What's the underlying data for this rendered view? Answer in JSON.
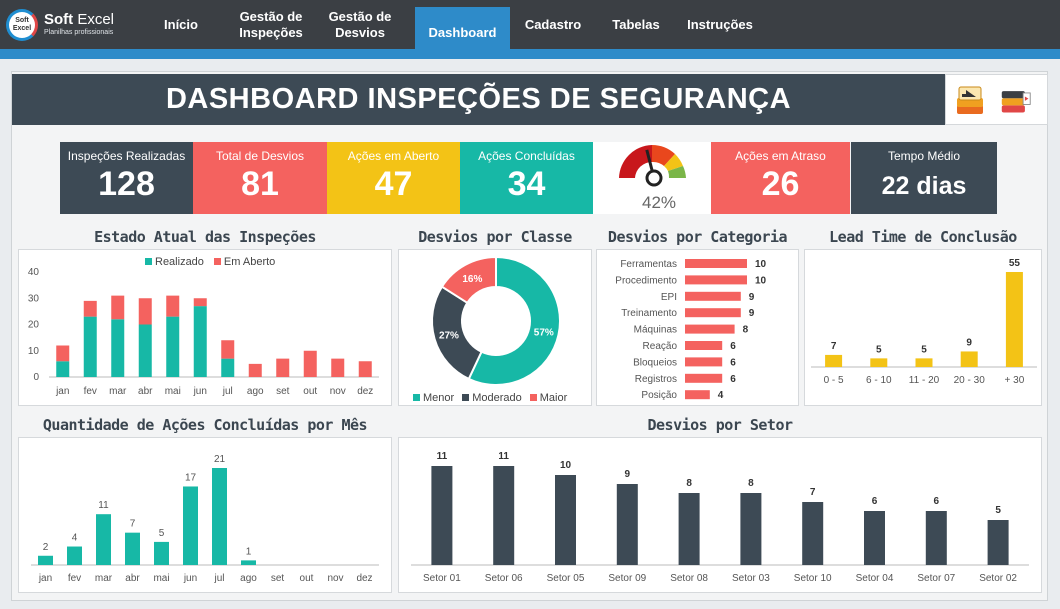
{
  "nav": {
    "logo_title_bold": "Soft",
    "logo_title_rest": " Excel",
    "logo_subtitle": "Planilhas profissionais",
    "logo_mark_top": "Soft",
    "logo_mark_bottom": "Excel",
    "items": [
      {
        "label": "Início"
      },
      {
        "label": "Gestão de Inspeções"
      },
      {
        "label": "Gestão de Desvios"
      },
      {
        "label": "Dashboard",
        "active": true
      },
      {
        "label": "Cadastro"
      },
      {
        "label": "Tabelas"
      },
      {
        "label": "Instruções"
      }
    ]
  },
  "title": "DASHBOARD INSPEÇÕES DE SEGURANÇA",
  "kpis": {
    "inspecoes": {
      "label": "Inspeções Realizadas",
      "value": "128",
      "color": "#3d4a55"
    },
    "desvios": {
      "label": "Total de Desvios",
      "value": "81",
      "color": "#f4625f"
    },
    "abertas": {
      "label": "Ações em Aberto",
      "value": "47",
      "color": "#f3c316"
    },
    "concluidas": {
      "label": "Ações Concluídas",
      "value": "34",
      "color": "#17b8a6"
    },
    "gauge": {
      "value": "42%",
      "fraction": 0.42
    },
    "atraso": {
      "label": "Ações em Atraso",
      "value": "26",
      "color": "#f4625f"
    },
    "tempo": {
      "label": "Tempo Médio",
      "value": "22 dias",
      "color": "#3d4a55"
    }
  },
  "sections": {
    "estado": "Estado Atual das Inspeções",
    "classe": "Desvios por Classe",
    "categoria": "Desvios por Categoria",
    "lead": "Lead Time de Conclusão",
    "acoes": "Quantidade de Ações Concluídas por Mês",
    "setor": "Desvios por Setor"
  },
  "chart_data": [
    {
      "id": "estado",
      "type": "bar",
      "stacked": true,
      "categories": [
        "jan",
        "fev",
        "mar",
        "abr",
        "mai",
        "jun",
        "jul",
        "ago",
        "set",
        "out",
        "nov",
        "dez"
      ],
      "series": [
        {
          "name": "Realizado",
          "color": "#17b8a6",
          "values": [
            6,
            23,
            22,
            20,
            23,
            27,
            7,
            0,
            0,
            0,
            0,
            0
          ]
        },
        {
          "name": "Em Aberto",
          "color": "#f4625f",
          "values": [
            6,
            6,
            9,
            10,
            8,
            3,
            7,
            5,
            7,
            10,
            7,
            6
          ]
        }
      ],
      "ylim": [
        0,
        40
      ],
      "yticks": [
        0,
        10,
        20,
        30,
        40
      ],
      "legend": "top"
    },
    {
      "id": "classe",
      "type": "pie",
      "donut": true,
      "slices": [
        {
          "name": "Menor",
          "value": 57,
          "label": "57%",
          "color": "#17b8a6"
        },
        {
          "name": "Moderado",
          "value": 27,
          "label": "27%",
          "color": "#3d4a55"
        },
        {
          "name": "Maior",
          "value": 16,
          "label": "16%",
          "color": "#f4625f"
        }
      ],
      "legend": "bottom"
    },
    {
      "id": "categoria",
      "type": "bar",
      "orientation": "horizontal",
      "categories": [
        "Ferramentas",
        "Procedimento",
        "EPI",
        "Treinamento",
        "Máquinas",
        "Reação",
        "Bloqueios",
        "Registros",
        "Posição"
      ],
      "values": [
        10,
        10,
        9,
        9,
        8,
        6,
        6,
        6,
        4
      ],
      "labels": [
        "10",
        "10",
        "9",
        "9",
        "8",
        "6",
        "6",
        "6",
        "4"
      ],
      "color": "#f4625f",
      "xlim": [
        0,
        10
      ]
    },
    {
      "id": "lead",
      "type": "bar",
      "categories": [
        "0 - 5",
        "6 - 10",
        "11 - 20",
        "20 - 30",
        "+ 30"
      ],
      "values": [
        7,
        5,
        5,
        9,
        55
      ],
      "labels": [
        "7",
        "5",
        "5",
        "9",
        "55"
      ],
      "color": "#f3c316",
      "ylim": [
        0,
        55
      ]
    },
    {
      "id": "acoes",
      "type": "bar",
      "categories": [
        "jan",
        "fev",
        "mar",
        "abr",
        "mai",
        "jun",
        "jul",
        "ago",
        "set",
        "out",
        "nov",
        "dez"
      ],
      "values": [
        2,
        4,
        11,
        7,
        5,
        17,
        21,
        1,
        0,
        0,
        0,
        0
      ],
      "labels": [
        "2",
        "4",
        "11",
        "7",
        "5",
        "17",
        "21",
        "1",
        "",
        "",
        "",
        ""
      ],
      "color": "#17b8a6",
      "ylim": [
        0,
        21
      ]
    },
    {
      "id": "setor",
      "type": "bar",
      "categories": [
        "Setor 01",
        "Setor 06",
        "Setor 05",
        "Setor 09",
        "Setor 08",
        "Setor 03",
        "Setor 10",
        "Setor 04",
        "Setor 07",
        "Setor 02"
      ],
      "values": [
        11,
        11,
        10,
        9,
        8,
        8,
        7,
        6,
        6,
        5
      ],
      "labels": [
        "11",
        "11",
        "10",
        "9",
        "8",
        "8",
        "7",
        "6",
        "6",
        "5"
      ],
      "color": "#3d4a55",
      "ylim": [
        0,
        11
      ]
    }
  ]
}
